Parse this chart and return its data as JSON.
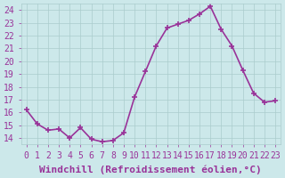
{
  "x": [
    0,
    1,
    2,
    3,
    4,
    5,
    6,
    7,
    8,
    9,
    10,
    11,
    12,
    13,
    14,
    15,
    16,
    17,
    18,
    19,
    20,
    21,
    22,
    23
  ],
  "y": [
    16.2,
    15.1,
    14.6,
    14.7,
    14.0,
    14.8,
    13.9,
    13.7,
    13.8,
    14.4,
    17.2,
    19.2,
    21.2,
    22.6,
    22.9,
    23.2,
    23.7,
    24.3,
    22.5,
    21.2,
    19.3,
    17.5,
    16.8,
    16.9
  ],
  "line_color": "#993399",
  "marker": "+",
  "marker_size": 5,
  "marker_edge_width": 1.2,
  "background_color": "#cce8ea",
  "grid_color": "#aacccc",
  "xlabel": "Windchill (Refroidissement éolien,°C)",
  "xlabel_color": "#993399",
  "tick_color": "#993399",
  "ylim": [
    13.5,
    24.5
  ],
  "xlim": [
    -0.5,
    23.5
  ],
  "yticks": [
    14,
    15,
    16,
    17,
    18,
    19,
    20,
    21,
    22,
    23,
    24
  ],
  "xticks": [
    0,
    1,
    2,
    3,
    4,
    5,
    6,
    7,
    8,
    9,
    10,
    11,
    12,
    13,
    14,
    15,
    16,
    17,
    18,
    19,
    20,
    21,
    22,
    23
  ],
  "xtick_labels": [
    "0",
    "1",
    "2",
    "3",
    "4",
    "5",
    "6",
    "7",
    "8",
    "9",
    "10",
    "11",
    "12",
    "13",
    "14",
    "15",
    "16",
    "17",
    "18",
    "19",
    "20",
    "21",
    "22",
    "23"
  ],
  "ytick_labels": [
    "14",
    "15",
    "16",
    "17",
    "18",
    "19",
    "20",
    "21",
    "22",
    "23",
    "24"
  ],
  "font_size": 7,
  "line_width": 1.2
}
